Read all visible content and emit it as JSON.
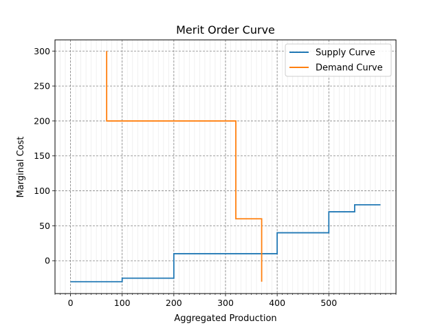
{
  "chart_data": {
    "type": "line",
    "title": "Merit Order Curve",
    "xlabel": "Aggregated Production",
    "ylabel": "Marginal Cost",
    "xlim": [
      -30,
      630
    ],
    "ylim": [
      -47,
      316
    ],
    "xticks": [
      0,
      100,
      200,
      300,
      400,
      500
    ],
    "yticks": [
      0,
      50,
      100,
      150,
      200,
      250,
      300
    ],
    "x_minor_step": 10,
    "grid": "major dashed gray, minor light",
    "legend_position": "upper right",
    "series": [
      {
        "name": "Supply Curve",
        "color": "#1f77b4",
        "step": "post",
        "x": [
          0,
          100,
          200,
          400,
          500,
          550,
          600
        ],
        "y": [
          -30,
          -25,
          10,
          40,
          70,
          80,
          80
        ]
      },
      {
        "name": "Demand Curve",
        "color": "#ff7f0e",
        "step": "post",
        "x": [
          70,
          70,
          320,
          370,
          370
        ],
        "y": [
          300,
          200,
          60,
          60,
          -30
        ]
      }
    ]
  }
}
